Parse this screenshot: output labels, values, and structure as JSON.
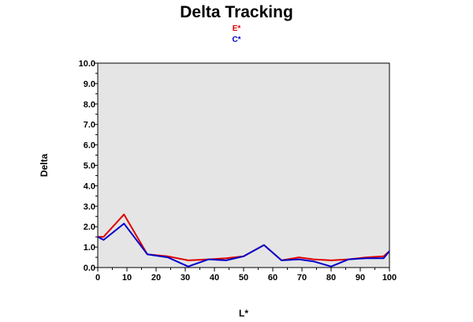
{
  "colors": {
    "background": "#ffffff",
    "plot_background": "#e5e5e5",
    "series_e": "#dd0000",
    "series_c": "#0000cc",
    "axis": "#000000"
  },
  "chart_data": {
    "type": "line",
    "title": "Delta Tracking",
    "xlabel": "L*",
    "ylabel": "Delta",
    "xlim": [
      0,
      100
    ],
    "ylim": [
      0,
      10
    ],
    "x_ticks": [
      "0",
      "10",
      "20",
      "30",
      "40",
      "50",
      "60",
      "70",
      "80",
      "90",
      "100"
    ],
    "y_ticks": [
      "0.0",
      "1.0",
      "2.0",
      "3.0",
      "4.0",
      "5.0",
      "6.0",
      "7.0",
      "8.0",
      "9.0",
      "10.0"
    ],
    "grid": false,
    "legend_position": "top-center",
    "series": [
      {
        "name": "E*",
        "color": "#dd0000",
        "x": [
          0,
          2,
          9,
          17,
          24,
          31,
          38,
          44,
          50,
          57,
          63,
          69,
          74,
          80,
          86,
          92,
          98,
          100
        ],
        "y": [
          1.5,
          1.5,
          2.6,
          0.65,
          0.55,
          0.35,
          0.4,
          0.45,
          0.55,
          1.1,
          0.35,
          0.5,
          0.4,
          0.35,
          0.4,
          0.5,
          0.55,
          0.8
        ]
      },
      {
        "name": "C*",
        "color": "#0000cc",
        "x": [
          0,
          2,
          9,
          17,
          24,
          31,
          38,
          44,
          50,
          57,
          63,
          69,
          74,
          80,
          86,
          92,
          98,
          100
        ],
        "y": [
          1.5,
          1.35,
          2.15,
          0.65,
          0.5,
          0.05,
          0.4,
          0.35,
          0.55,
          1.1,
          0.35,
          0.4,
          0.3,
          0.05,
          0.4,
          0.45,
          0.45,
          0.8
        ]
      }
    ]
  }
}
